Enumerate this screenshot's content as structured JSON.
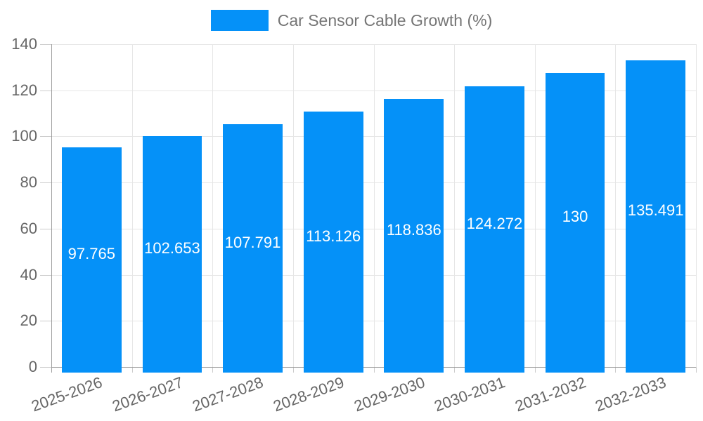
{
  "legend": {
    "label": "Car Sensor Cable Growth (%)"
  },
  "chart_data": {
    "type": "bar",
    "title": "Car Sensor Cable Growth (%)",
    "categories": [
      "2025-2026",
      "2026-2027",
      "2027-2028",
      "2028-2029",
      "2029-2030",
      "2030-2031",
      "2031-2032",
      "2032-2033"
    ],
    "values": [
      97.765,
      102.653,
      107.791,
      113.126,
      118.836,
      124.272,
      130,
      135.491
    ],
    "value_labels": [
      "97.765",
      "102.653",
      "107.791",
      "113.126",
      "118.836",
      "124.272",
      "130",
      "135.491"
    ],
    "xlabel": "",
    "ylabel": "",
    "ylim": [
      0,
      140
    ],
    "yticks": [
      0,
      20,
      40,
      60,
      80,
      100,
      120,
      140
    ],
    "grid": true,
    "legend_position": "top-center",
    "colors": {
      "bar": "#0591f8",
      "grid": "#e6e6e6",
      "axis": "#9e9e9e",
      "tick": "#cccccc",
      "axis_text": "#666666",
      "legend_text": "#757575",
      "value_text": "#ffffff",
      "background": "#ffffff"
    }
  }
}
